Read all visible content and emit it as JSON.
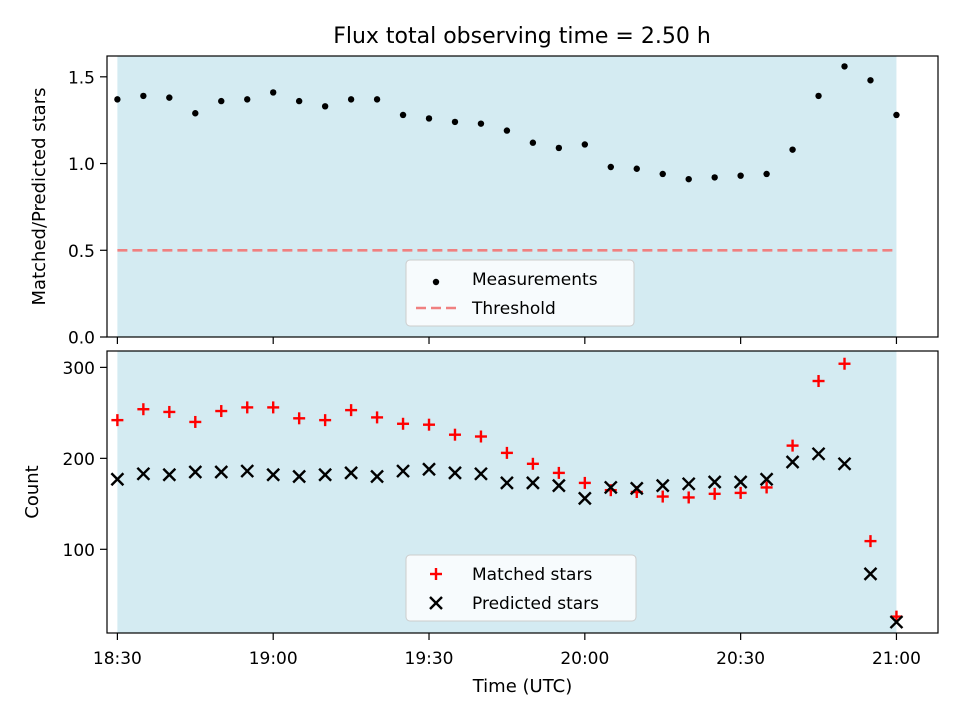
{
  "chart_data": [
    {
      "type": "scatter",
      "title": "Flux total observing time = 2.50 h",
      "ylabel": "Matched/Predicted stars",
      "xlabel": "",
      "x_unit": "time (UTC)",
      "xlim": [
        "18:28",
        "21:08"
      ],
      "ylim": [
        0,
        1.62
      ],
      "yticks": [
        0,
        0.5,
        1.0,
        1.5
      ],
      "ytick_labels": [
        "0.0",
        "0.5",
        "1.0",
        "1.5"
      ],
      "shaded_span": {
        "from": "18:30",
        "to": "21:00",
        "color": "#add8e6"
      },
      "threshold": {
        "name": "Threshold",
        "value": 0.5,
        "color": "#f08080",
        "style": "dashed"
      },
      "legend": {
        "placement": "lower-center",
        "entries": [
          "Measurements",
          "Threshold"
        ]
      },
      "series": [
        {
          "name": "Measurements",
          "marker": "dot",
          "color": "#000000",
          "x": [
            "18:30",
            "18:35",
            "18:40",
            "18:45",
            "18:50",
            "18:55",
            "19:00",
            "19:05",
            "19:10",
            "19:15",
            "19:20",
            "19:25",
            "19:30",
            "19:35",
            "19:40",
            "19:45",
            "19:50",
            "19:55",
            "20:00",
            "20:05",
            "20:10",
            "20:15",
            "20:20",
            "20:25",
            "20:30",
            "20:35",
            "20:40",
            "20:45",
            "20:50",
            "20:55",
            "21:00"
          ],
          "values": [
            1.37,
            1.39,
            1.38,
            1.29,
            1.36,
            1.37,
            1.41,
            1.36,
            1.33,
            1.37,
            1.37,
            1.28,
            1.26,
            1.24,
            1.23,
            1.19,
            1.12,
            1.09,
            1.11,
            0.98,
            0.97,
            0.94,
            0.91,
            0.92,
            0.93,
            0.94,
            1.08,
            1.39,
            1.56,
            1.48,
            1.28
          ]
        }
      ]
    },
    {
      "type": "scatter",
      "title": "",
      "ylabel": "Count",
      "xlabel": "Time (UTC)",
      "xlim": [
        "18:28",
        "21:08"
      ],
      "ylim": [
        8,
        318
      ],
      "yticks": [
        100,
        200,
        300
      ],
      "ytick_labels": [
        "100",
        "200",
        "300"
      ],
      "xticks": [
        "18:30",
        "19:00",
        "19:30",
        "20:00",
        "20:30",
        "21:00"
      ],
      "xtick_labels": [
        "18:30",
        "19:00",
        "19:30",
        "20:00",
        "20:30",
        "21:00"
      ],
      "shaded_span": {
        "from": "18:30",
        "to": "21:00",
        "color": "#add8e6"
      },
      "legend": {
        "placement": "lower-center",
        "entries": [
          "Matched stars",
          "Predicted stars"
        ]
      },
      "series": [
        {
          "name": "Matched stars",
          "marker": "plus",
          "color": "#ff0000",
          "x": [
            "18:30",
            "18:35",
            "18:40",
            "18:45",
            "18:50",
            "18:55",
            "19:00",
            "19:05",
            "19:10",
            "19:15",
            "19:20",
            "19:25",
            "19:30",
            "19:35",
            "19:40",
            "19:45",
            "19:50",
            "19:55",
            "20:00",
            "20:05",
            "20:10",
            "20:15",
            "20:20",
            "20:25",
            "20:30",
            "20:35",
            "20:40",
            "20:45",
            "20:50",
            "20:55",
            "21:00"
          ],
          "values": [
            242,
            254,
            251,
            240,
            252,
            256,
            256,
            244,
            242,
            253,
            245,
            238,
            237,
            226,
            224,
            206,
            194,
            184,
            173,
            165,
            163,
            158,
            157,
            161,
            162,
            168,
            214,
            285,
            304,
            109,
            26
          ]
        },
        {
          "name": "Predicted stars",
          "marker": "x",
          "color": "#000000",
          "x": [
            "18:30",
            "18:35",
            "18:40",
            "18:45",
            "18:50",
            "18:55",
            "19:00",
            "19:05",
            "19:10",
            "19:15",
            "19:20",
            "19:25",
            "19:30",
            "19:35",
            "19:40",
            "19:45",
            "19:50",
            "19:55",
            "20:00",
            "20:05",
            "20:10",
            "20:15",
            "20:20",
            "20:25",
            "20:30",
            "20:35",
            "20:40",
            "20:45",
            "20:50",
            "20:55",
            "21:00"
          ],
          "values": [
            177,
            183,
            182,
            185,
            185,
            186,
            182,
            180,
            182,
            184,
            180,
            186,
            188,
            184,
            183,
            173,
            173,
            170,
            156,
            168,
            167,
            170,
            172,
            174,
            174,
            177,
            196,
            205,
            194,
            73,
            20
          ]
        }
      ]
    }
  ]
}
